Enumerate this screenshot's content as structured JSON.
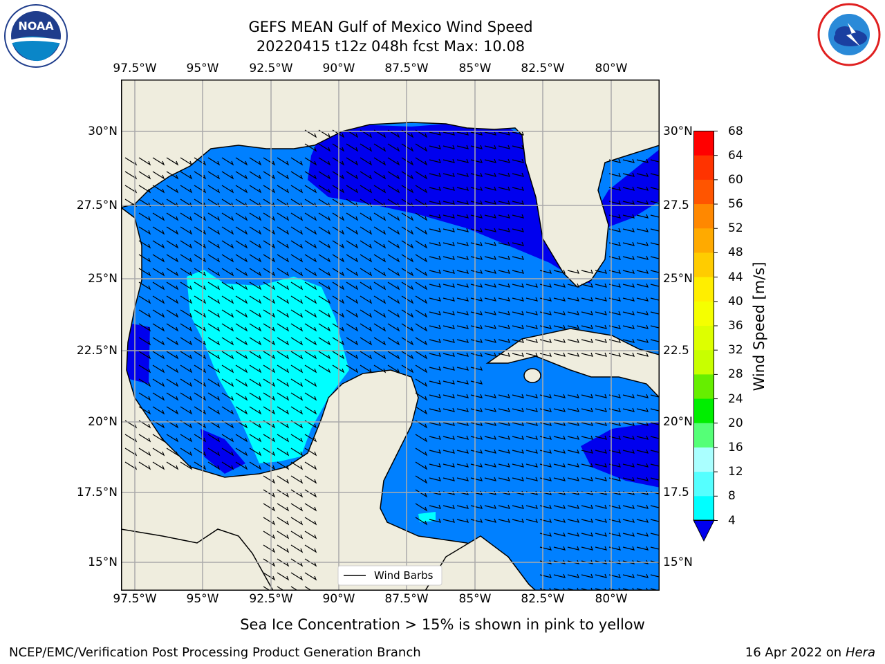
{
  "title_line1": "GEFS MEAN Gulf of Mexico Wind Speed",
  "title_line2": "20220415 t12z 048h fcst   Max: 10.08",
  "lon_labels": [
    "97.5°W",
    "95°W",
    "92.5°W",
    "90°W",
    "87.5°W",
    "85°W",
    "82.5°W",
    "80°W"
  ],
  "lat_labels": [
    "30°N",
    "27.5°N",
    "25°N",
    "22.5°N",
    "20°N",
    "17.5°N",
    "15°N"
  ],
  "lat_labels_right": [
    "30°N",
    "27.5",
    "25°N",
    "22.5",
    "20°N",
    "17.5",
    "15°N"
  ],
  "colorbar": {
    "label": "Wind Speed [m/s]",
    "ticks": [
      "68",
      "64",
      "60",
      "56",
      "52",
      "48",
      "44",
      "40",
      "36",
      "32",
      "28",
      "24",
      "20",
      "16",
      "12",
      "8",
      "4"
    ],
    "colors": [
      "#ff0000",
      "#ff3300",
      "#ff5500",
      "#ff8800",
      "#ffaa00",
      "#ffcc00",
      "#ffee00",
      "#f5ff00",
      "#ddff00",
      "#c8ff00",
      "#66ee00",
      "#00ee00",
      "#55ff77",
      "#aaffff",
      "#55ffff",
      "#00ffff",
      "#0080ff"
    ],
    "under_color": "#0000ee"
  },
  "legend_label": "Wind Barbs",
  "caption": "Sea Ice Concentration > 15% is shown in pink to yellow",
  "footer_left": "NCEP/EMC/Verification Post Processing Product Generation Branch",
  "footer_right_prefix": "16 Apr 2022 on ",
  "footer_right_host": "Hera",
  "logo_left_text": "NOAA",
  "colors": {
    "land": "#efedde",
    "water_4_8": "#0080ff",
    "water_8_12": "#00ffff",
    "water_lt4": "#0000ee",
    "grid": "#aaaaaa"
  }
}
